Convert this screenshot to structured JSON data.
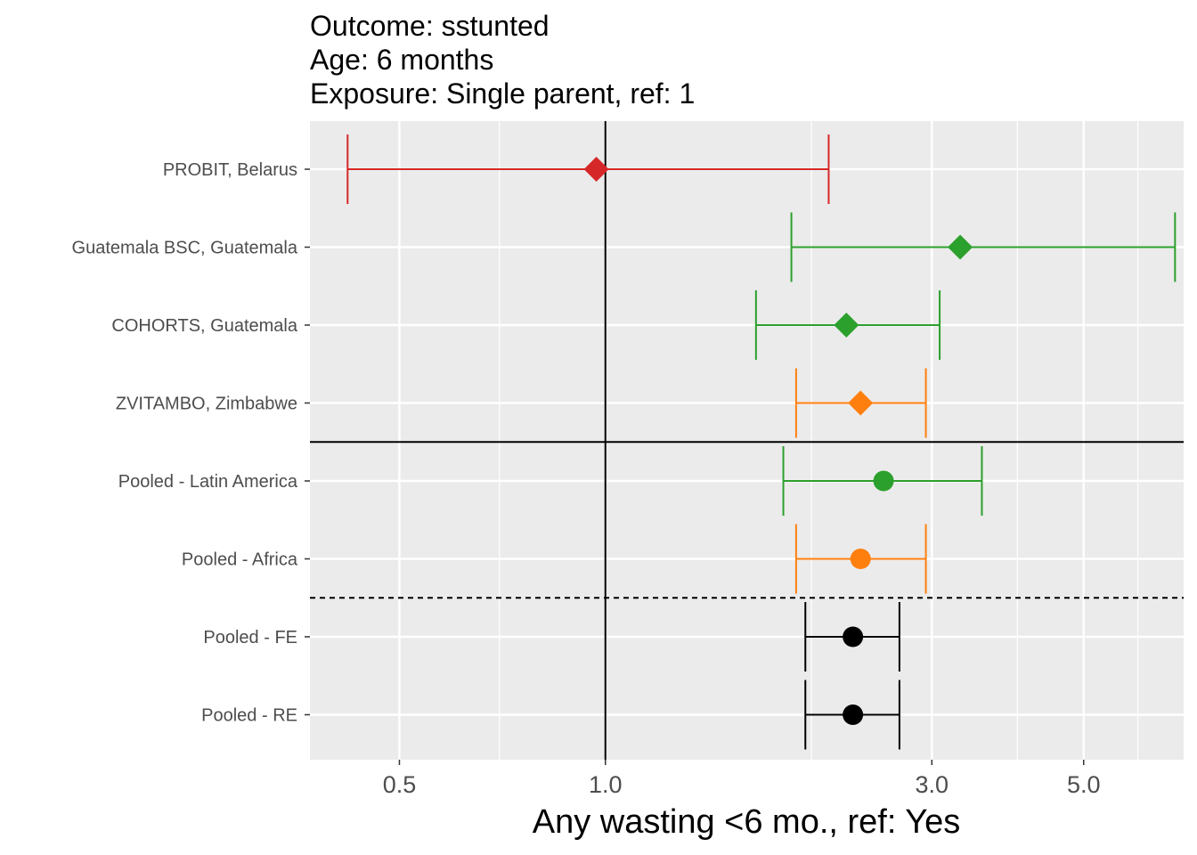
{
  "title_lines": [
    "Outcome: sstunted",
    "Age: 6 months",
    "Exposure: Single parent, ref: 1"
  ],
  "chart_data": {
    "type": "forest",
    "xscale": "log",
    "xlim": [
      0.37,
      7.0
    ],
    "xlabel": "Any wasting  <6 mo., ref: Yes",
    "xticks": [
      {
        "value": 0.5,
        "label": "0.5"
      },
      {
        "value": 1.0,
        "label": "1.0"
      },
      {
        "value": 3.0,
        "label": "3.0"
      },
      {
        "value": 5.0,
        "label": "5.0"
      }
    ],
    "xminor": [
      0.7,
      2.0,
      4.0,
      6.0
    ],
    "reference_line": 1.0,
    "rows": [
      {
        "label": "PROBIT, Belarus",
        "est": 0.97,
        "lower": 0.42,
        "upper": 2.12,
        "color": "#d62728",
        "shape": "diamond"
      },
      {
        "label": "Guatemala BSC, Guatemala",
        "est": 3.3,
        "lower": 1.87,
        "upper": 6.8,
        "color": "#2ca02c",
        "shape": "diamond"
      },
      {
        "label": "COHORTS, Guatemala",
        "est": 2.25,
        "lower": 1.66,
        "upper": 3.08,
        "color": "#2ca02c",
        "shape": "diamond"
      },
      {
        "label": "ZVITAMBO, Zimbabwe",
        "est": 2.36,
        "lower": 1.9,
        "upper": 2.94,
        "color": "#ff7f0e",
        "shape": "diamond"
      },
      {
        "label": "Pooled - Latin America",
        "est": 2.55,
        "lower": 1.82,
        "upper": 3.55,
        "color": "#2ca02c",
        "shape": "circle"
      },
      {
        "label": "Pooled - Africa",
        "est": 2.36,
        "lower": 1.9,
        "upper": 2.94,
        "color": "#ff7f0e",
        "shape": "circle"
      },
      {
        "label": "Pooled - FE",
        "est": 2.3,
        "lower": 1.96,
        "upper": 2.69,
        "color": "#000000",
        "shape": "circle"
      },
      {
        "label": "Pooled - RE",
        "est": 2.3,
        "lower": 1.96,
        "upper": 2.69,
        "color": "#000000",
        "shape": "circle"
      }
    ],
    "separators": [
      {
        "after_row": 4,
        "style": "solid"
      },
      {
        "after_row": 6,
        "style": "dashed"
      }
    ]
  }
}
